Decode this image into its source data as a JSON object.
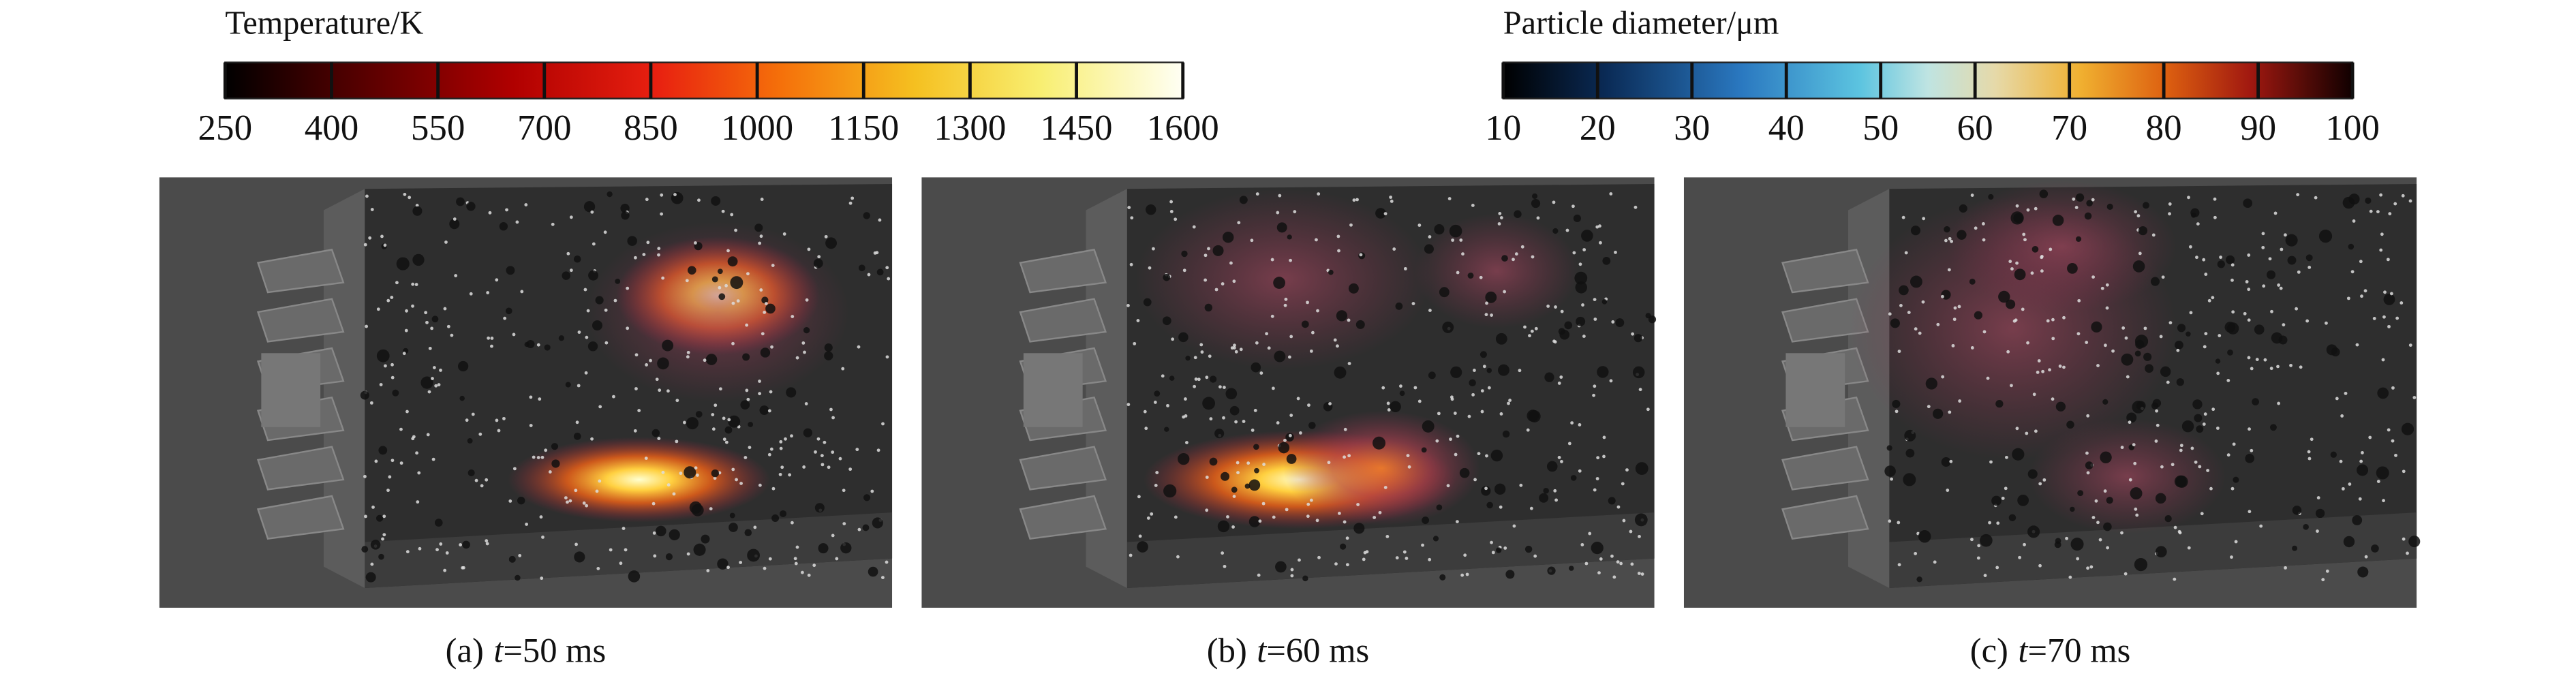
{
  "colorbars": [
    {
      "title": "Temperature/K",
      "ticks": [
        250,
        400,
        550,
        700,
        850,
        1000,
        1150,
        1300,
        1450,
        1600
      ]
    },
    {
      "title": "Particle diameter/μm",
      "ticks": [
        10,
        20,
        30,
        40,
        50,
        60,
        70,
        80,
        90,
        100
      ]
    }
  ],
  "panels": [
    {
      "label": "(a)",
      "variable": "t",
      "value": "=50 ms"
    },
    {
      "label": "(b)",
      "variable": "t",
      "value": "=60 ms"
    },
    {
      "label": "(c)",
      "variable": "t",
      "value": "=70 ms"
    }
  ]
}
